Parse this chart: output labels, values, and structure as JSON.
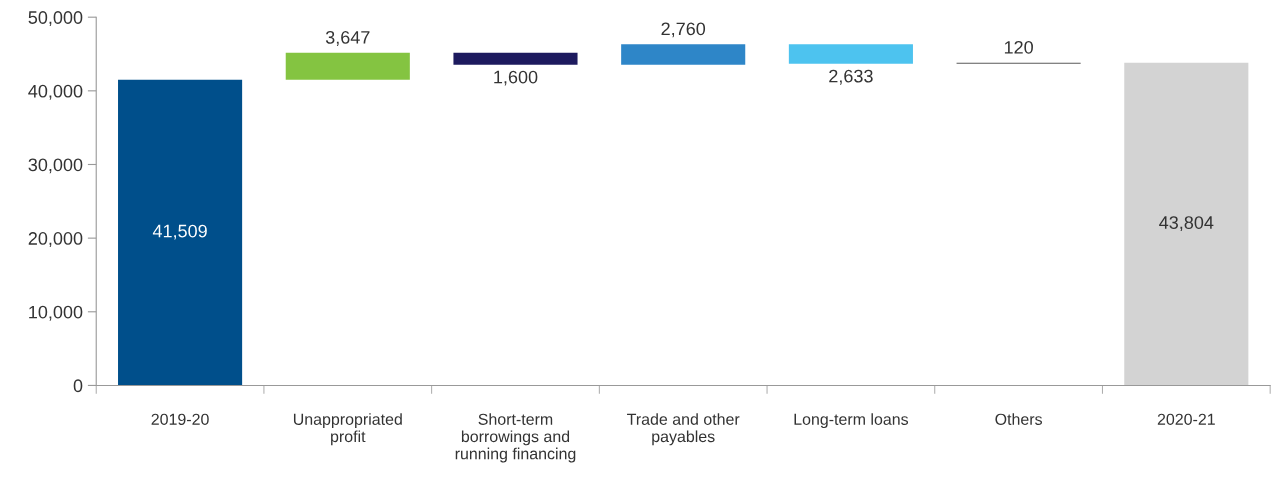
{
  "chart_data": {
    "type": "bar",
    "categories": [
      "2019-20",
      "Unappropriated profit",
      "Short-term borrowings and running financing",
      "Trade and other payables",
      "Long-term loans",
      "Others",
      "2020-21"
    ],
    "values": [
      41509,
      3647,
      1600,
      2760,
      2633,
      120,
      43804
    ],
    "base": [
      0,
      41509,
      43556,
      43556,
      43683,
      43683,
      0
    ],
    "colors": [
      "#004f8b",
      "#84c441",
      "#1d1a5e",
      "#2e86c8",
      "#4dc3ef",
      "#5a5a5a",
      "#d3d3d3"
    ],
    "value_labels": [
      "41,509",
      "3,647",
      "1,600",
      "2,760",
      "2,633",
      "120",
      "43,804"
    ],
    "ylim": [
      0,
      50000
    ],
    "yticks": [
      0,
      {
        "value": 10000,
        "label": "10,000"
      },
      {
        "value": 20000,
        "label": "20,000"
      },
      {
        "value": 30000,
        "label": "30,000"
      },
      {
        "value": 40000,
        "label": "40,000"
      },
      {
        "value": 50000,
        "label": "50,000"
      }
    ],
    "grid": false,
    "legend": false
  }
}
